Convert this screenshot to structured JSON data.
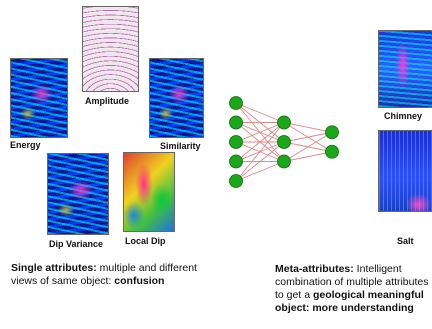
{
  "left": {
    "panels": [
      {
        "label": "Amplitude"
      },
      {
        "label": "Energy"
      },
      {
        "label": "Similarity"
      },
      {
        "label": "Dip Variance"
      },
      {
        "label": "Local Dip"
      }
    ],
    "caption": {
      "bold_lead": "Single attributes:",
      "text": " multiple and different views of same object: ",
      "bold_tail": "confusion"
    }
  },
  "network": {
    "layers": [
      5,
      3,
      2
    ],
    "node_color": "#1aa81a",
    "edge_color": "#e08a8a"
  },
  "right": {
    "panels": [
      {
        "label": "Chimney"
      },
      {
        "label": "Salt"
      }
    ],
    "caption": {
      "bold_lead": "Meta-attributes:",
      "text": " Intelligent combination of multiple attributes to get a ",
      "bold_tail": "geological meaningful object: more understanding"
    }
  }
}
